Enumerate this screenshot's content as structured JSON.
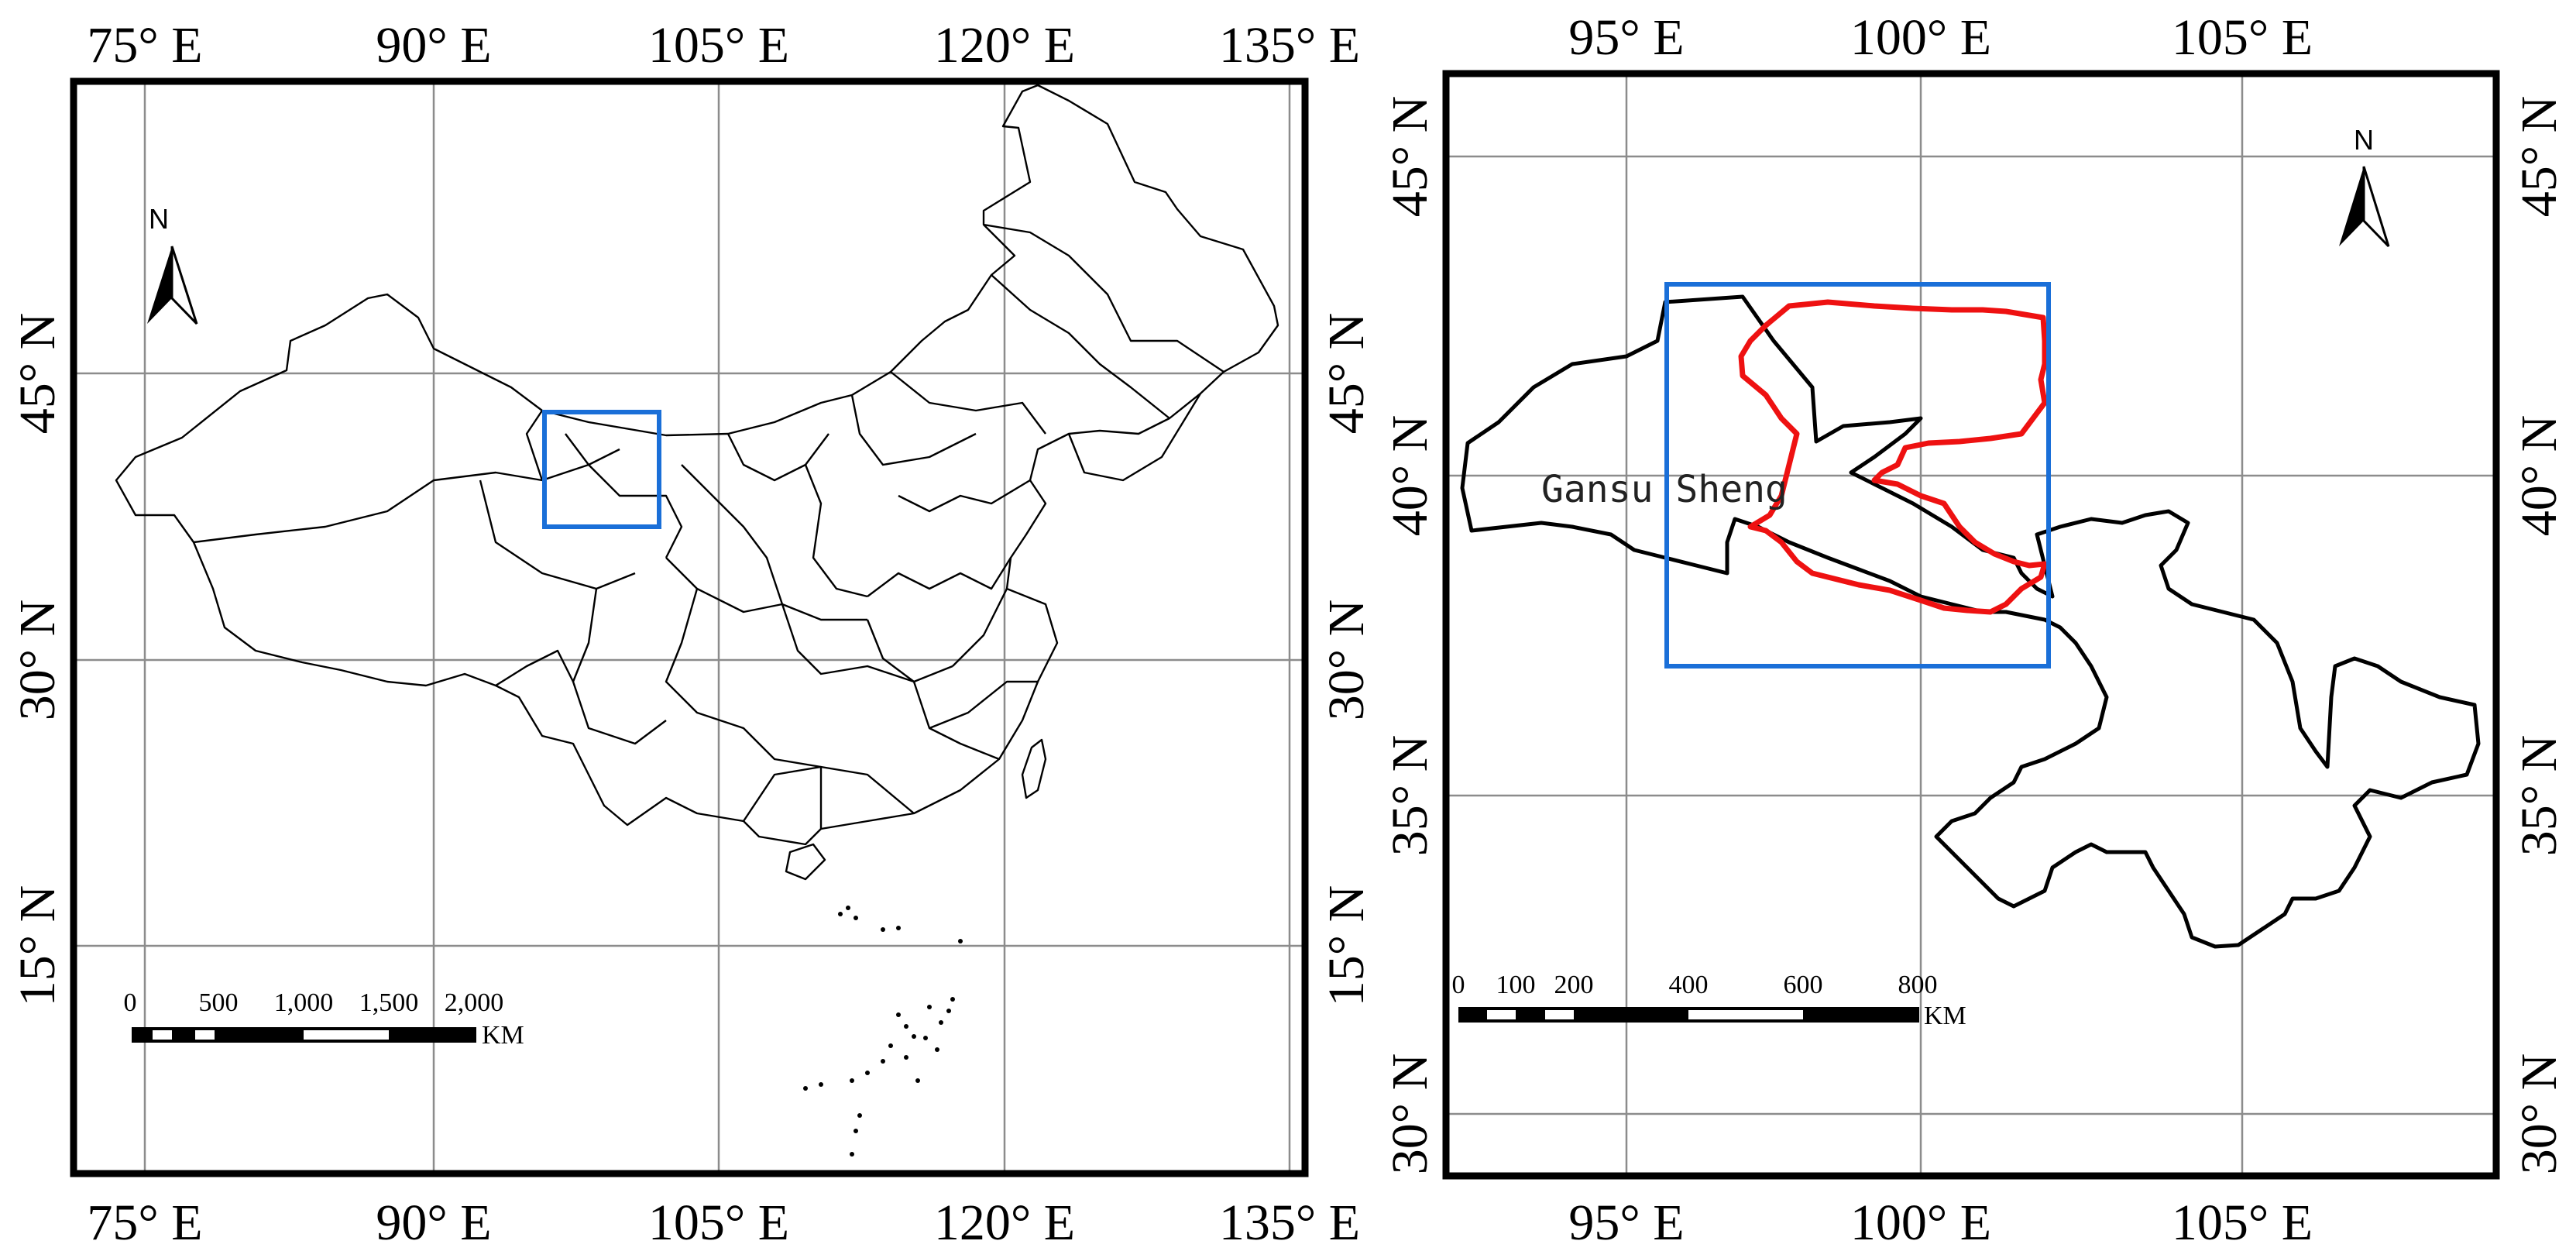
{
  "left_map": {
    "top_lon_labels": [
      "75° E",
      "90° E",
      "105° E",
      "120° E",
      "135° E"
    ],
    "bottom_lon_labels": [
      "75° E",
      "90° E",
      "105° E",
      "120° E",
      "135° E"
    ],
    "left_lat_labels": [
      "45° N",
      "30° N",
      "15° N"
    ],
    "right_lat_labels": [
      "45° N",
      "30° N",
      "15° N"
    ],
    "north_label": "N",
    "scalebar": {
      "ticks": [
        "0",
        "500",
        "1,000",
        "1,500",
        "2,000"
      ],
      "unit": "KM"
    },
    "box_color": "#1a6fd8"
  },
  "right_map": {
    "top_lon_labels": [
      "95° E",
      "100° E",
      "105° E"
    ],
    "bottom_lon_labels": [
      "95° E",
      "100° E",
      "105° E"
    ],
    "left_lat_labels": [
      "45° N",
      "40° N",
      "35° N",
      "30° N"
    ],
    "right_lat_labels": [
      "45° N",
      "40° N",
      "35° N",
      "30° N"
    ],
    "north_label": "N",
    "region_label": "Gansu Sheng",
    "scalebar": {
      "ticks": [
        "0",
        "100",
        "200",
        "400",
        "600",
        "800"
      ],
      "unit": "KM"
    },
    "study_area_color": "#ee1111",
    "box_color": "#1a6fd8"
  }
}
